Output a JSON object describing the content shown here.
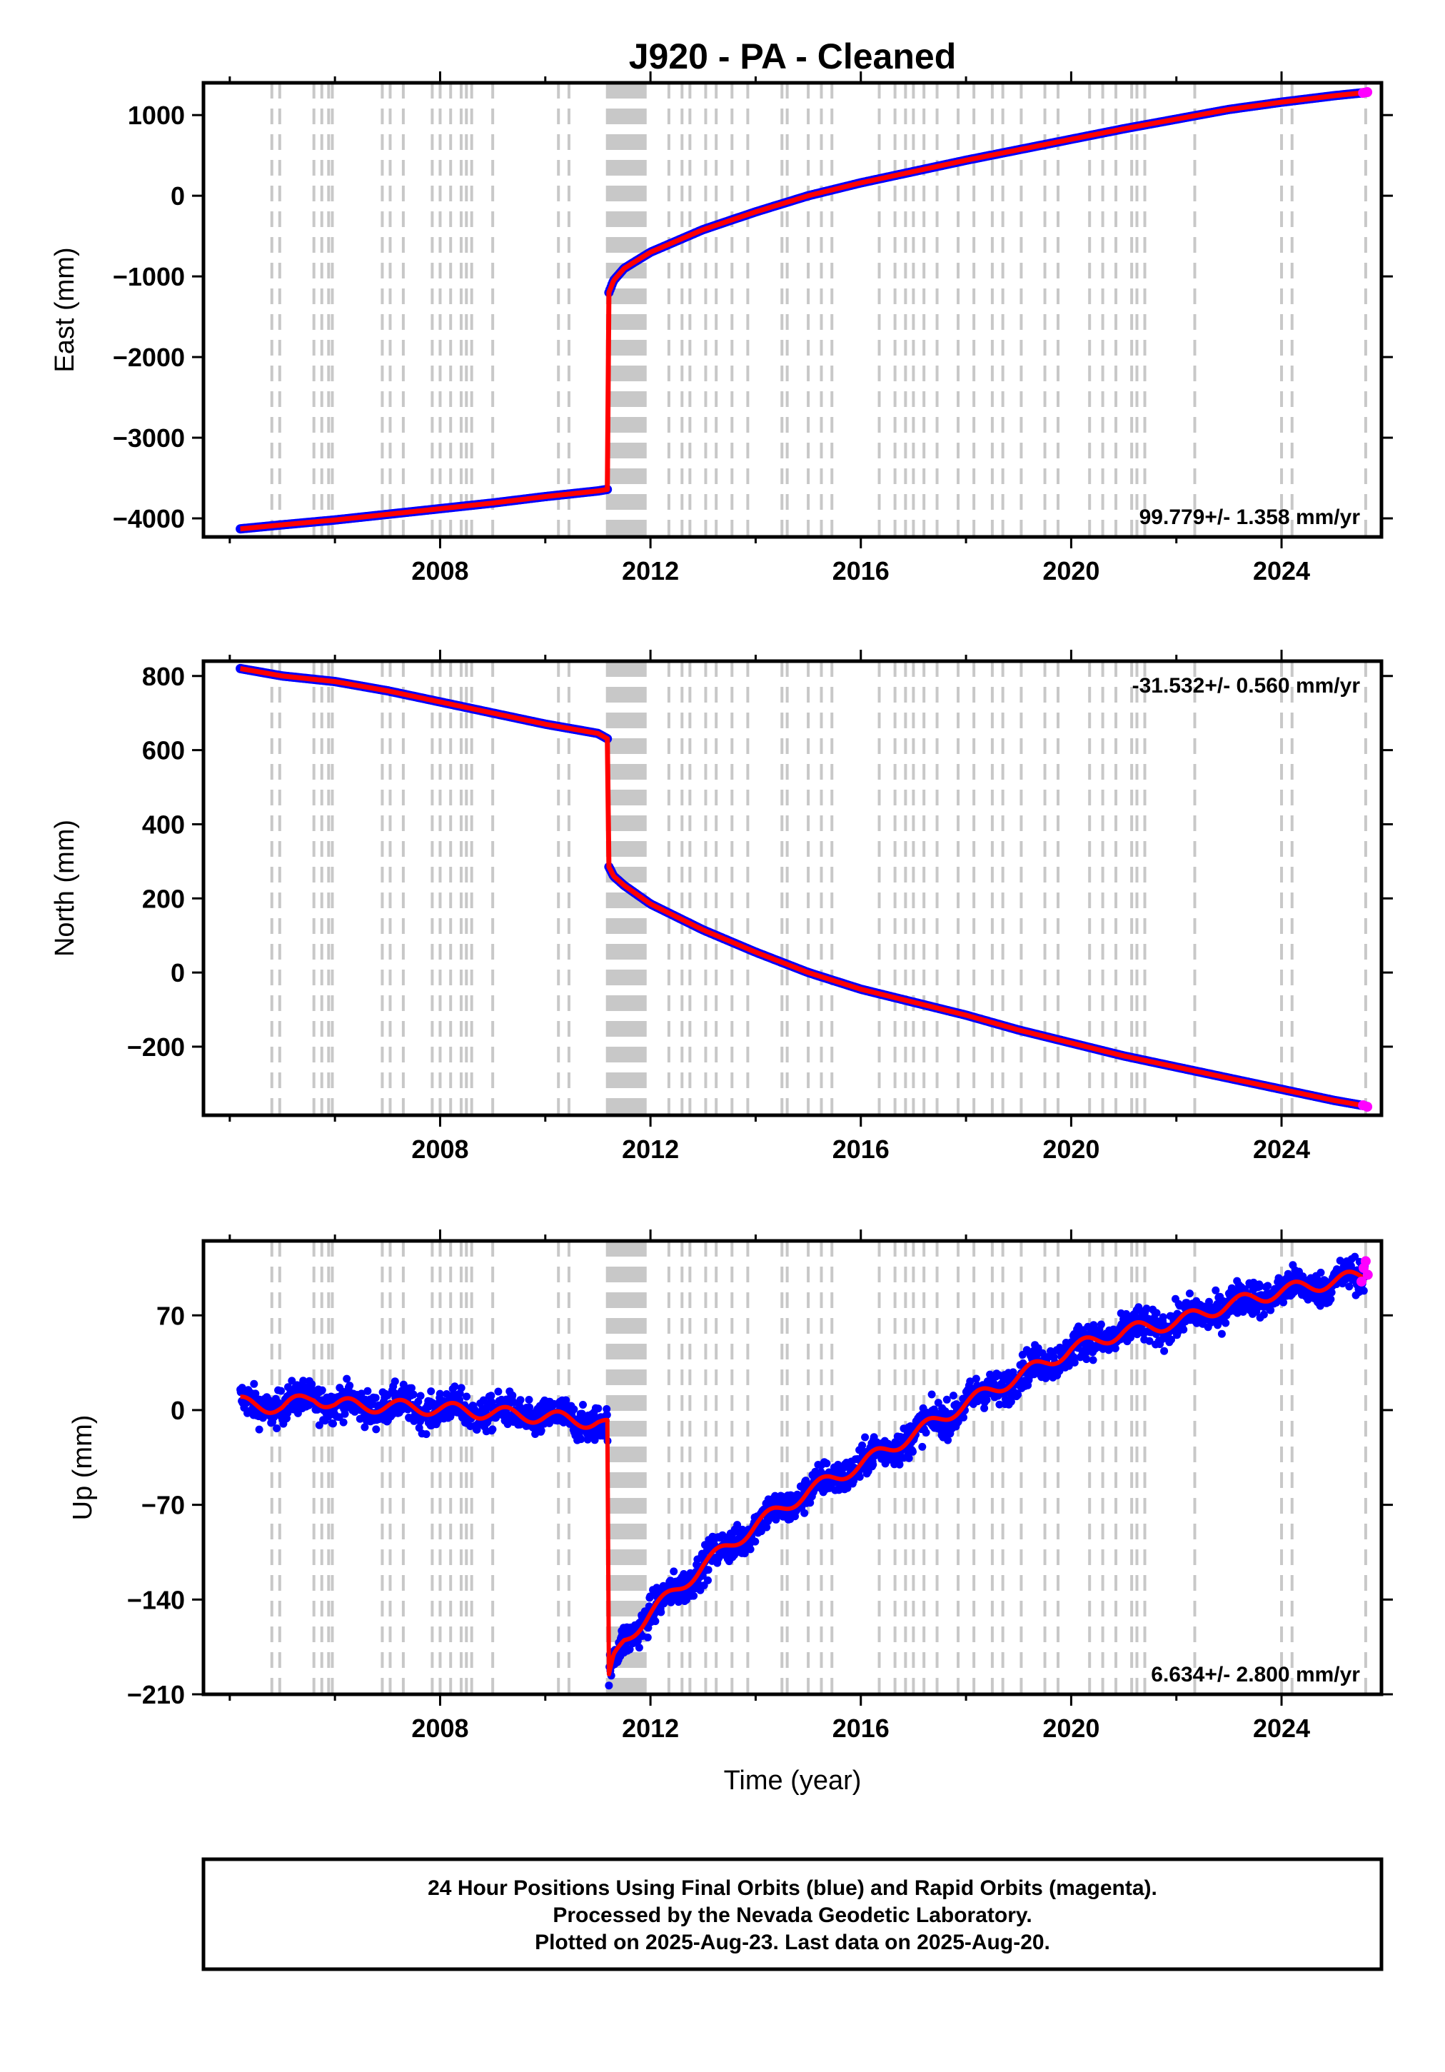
{
  "title": "J920  - PA - Cleaned",
  "footer": {
    "lines": [
      "24 Hour Positions Using Final Orbits (blue) and Rapid Orbits (magenta).",
      "Processed by the Nevada Geodetic Laboratory.",
      "Plotted on 2025-Aug-23. Last data on 2025-Aug-20."
    ]
  },
  "colors": {
    "final_orbits": "#0000ff",
    "rapid_orbits": "#ff00ff",
    "model": "#ff0000",
    "equipment_lines": "#c8c8c8"
  },
  "equipment_change_years": [
    2004.8,
    2004.95,
    2005.6,
    2005.75,
    2005.88,
    2005.95,
    2006.9,
    2007.05,
    2007.3,
    2007.85,
    2008.0,
    2008.2,
    2008.4,
    2008.5,
    2008.6,
    2009.0,
    2010.25,
    2010.45,
    2011.18,
    2011.22,
    2011.26,
    2011.3,
    2011.34,
    2011.38,
    2011.42,
    2011.46,
    2011.5,
    2011.54,
    2011.58,
    2011.62,
    2011.66,
    2011.7,
    2011.74,
    2011.78,
    2011.82,
    2011.86,
    2011.9,
    2012.35,
    2012.6,
    2012.75,
    2013.05,
    2013.25,
    2013.55,
    2013.85,
    2014.5,
    2014.6,
    2015.0,
    2015.25,
    2015.45,
    2016.35,
    2016.65,
    2016.85,
    2017.0,
    2017.2,
    2017.45,
    2017.85,
    2018.15,
    2018.5,
    2018.7,
    2019.05,
    2019.5,
    2019.75,
    2020.35,
    2020.6,
    2020.85,
    2021.15,
    2021.25,
    2021.4,
    2022.35,
    2024.0,
    2024.2,
    2025.6
  ],
  "chart_data": [
    {
      "type": "scatter",
      "component": "east",
      "ylabel": "East (mm)",
      "xlim": [
        2003.5,
        2025.9
      ],
      "ylim": [
        -4230,
        1400
      ],
      "x_ticks": [
        2008,
        2012,
        2016,
        2020,
        2024
      ],
      "y_ticks": [
        1000,
        0,
        -1000,
        -2000,
        -3000,
        -4000
      ],
      "rate_label": "99.779+/- 1.358 mm/yr",
      "rate_position": "bottom-right",
      "series": [
        {
          "role": "final_orbits",
          "x": [
            2004.2,
            2005.0,
            2006.0,
            2007.0,
            2008.0,
            2009.0,
            2010.0,
            2011.0,
            2011.19
          ],
          "y": [
            -4130,
            -4080,
            -4020,
            -3950,
            -3880,
            -3810,
            -3730,
            -3660,
            -3640
          ]
        },
        {
          "role": "final_orbits",
          "x": [
            2011.21,
            2011.3,
            2011.5,
            2012.0,
            2013.0,
            2014.0,
            2015.0,
            2016.0,
            2017.0,
            2018.0,
            2019.0,
            2020.0,
            2021.0,
            2022.0,
            2023.0,
            2024.0,
            2025.0,
            2025.6
          ],
          "y": [
            -1200,
            -1050,
            -900,
            -700,
            -420,
            -200,
            0,
            160,
            300,
            440,
            570,
            700,
            830,
            950,
            1070,
            1160,
            1240,
            1280
          ]
        },
        {
          "role": "rapid_orbits",
          "x": [
            2025.55,
            2025.63
          ],
          "y": [
            1275,
            1285
          ]
        }
      ]
    },
    {
      "type": "scatter",
      "component": "north",
      "ylabel": "North (mm)",
      "xlim": [
        2003.5,
        2025.9
      ],
      "ylim": [
        -385,
        840
      ],
      "x_ticks": [
        2008,
        2012,
        2016,
        2020,
        2024
      ],
      "y_ticks": [
        800,
        600,
        400,
        200,
        0,
        -200
      ],
      "rate_label": "-31.532+/- 0.560 mm/yr",
      "rate_position": "top-right",
      "series": [
        {
          "role": "final_orbits",
          "x": [
            2004.2,
            2005.0,
            2006.0,
            2007.0,
            2008.0,
            2009.0,
            2010.0,
            2011.0,
            2011.19
          ],
          "y": [
            820,
            800,
            785,
            760,
            730,
            700,
            670,
            645,
            630
          ]
        },
        {
          "role": "final_orbits",
          "x": [
            2011.21,
            2011.3,
            2011.5,
            2012.0,
            2013.0,
            2014.0,
            2015.0,
            2016.0,
            2017.0,
            2018.0,
            2019.0,
            2020.0,
            2021.0,
            2022.0,
            2023.0,
            2024.0,
            2025.0,
            2025.6
          ],
          "y": [
            285,
            260,
            235,
            185,
            115,
            55,
            0,
            -45,
            -80,
            -115,
            -155,
            -190,
            -225,
            -255,
            -285,
            -315,
            -345,
            -360
          ]
        },
        {
          "role": "rapid_orbits",
          "x": [
            2025.55,
            2025.63
          ],
          "y": [
            -358,
            -362
          ]
        }
      ]
    },
    {
      "type": "scatter",
      "component": "up",
      "ylabel": "Up (mm)",
      "xlabel": "Time (year)",
      "xlim": [
        2003.5,
        2025.9
      ],
      "ylim": [
        -210,
        125
      ],
      "x_ticks": [
        2008,
        2012,
        2016,
        2020,
        2024
      ],
      "y_ticks": [
        70,
        0,
        -70,
        -140,
        -210
      ],
      "rate_label": "6.634+/- 2.800 mm/yr",
      "rate_position": "bottom-right",
      "scatter_noise_mm": 9,
      "series": [
        {
          "role": "final_orbits",
          "x": [
            2004.2,
            2005.0,
            2005.6,
            2006.0,
            2007.0,
            2008.0,
            2009.0,
            2010.0,
            2011.0,
            2011.19
          ],
          "y": [
            5,
            2,
            10,
            4,
            3,
            1,
            -2,
            -5,
            -9,
            -12
          ]
        },
        {
          "role": "final_orbits",
          "x": [
            2011.21,
            2011.3,
            2011.5,
            2012.0,
            2013.0,
            2014.0,
            2015.0,
            2016.0,
            2017.0,
            2018.0,
            2019.0,
            2020.0,
            2021.0,
            2022.0,
            2023.0,
            2024.0,
            2025.0,
            2025.6
          ],
          "y": [
            -200,
            -185,
            -170,
            -150,
            -115,
            -85,
            -60,
            -40,
            -18,
            5,
            25,
            45,
            58,
            65,
            78,
            88,
            95,
            100
          ]
        },
        {
          "role": "rapid_orbits",
          "x": [
            2025.52,
            2025.56,
            2025.6,
            2025.64
          ],
          "y": [
            95,
            105,
            110,
            100
          ]
        }
      ]
    }
  ]
}
